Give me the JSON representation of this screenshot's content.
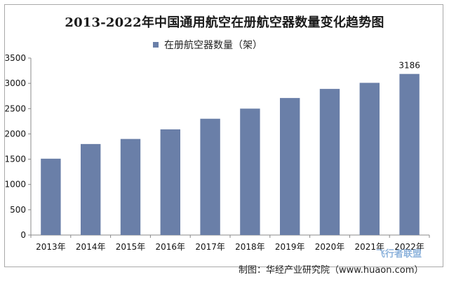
{
  "chart_data": {
    "type": "bar",
    "title": "2013-2022年中国通用航空在册航空器数量变化趋势图",
    "xlabel": "",
    "ylabel": "",
    "categories": [
      "2013年",
      "2014年",
      "2015年",
      "2016年",
      "2017年",
      "2018年",
      "2019年",
      "2020年",
      "2021年",
      "2022年"
    ],
    "series": [
      {
        "name": "在册航空器数量（架）",
        "values": [
          1510,
          1800,
          1900,
          2090,
          2300,
          2500,
          2710,
          2890,
          3010,
          3186
        ]
      }
    ],
    "data_labels": [
      {
        "category": "2022年",
        "text": "3186"
      }
    ],
    "ylim": [
      0,
      3500
    ],
    "yticks": [
      0,
      500,
      1000,
      1500,
      2000,
      2500,
      3000,
      3500
    ],
    "grid": false,
    "legend_position": "top",
    "bar_color": "#6a7fa8",
    "source": "制图：华经产业研究院（www.huaon.com）"
  },
  "watermark": "飞行者联盟"
}
